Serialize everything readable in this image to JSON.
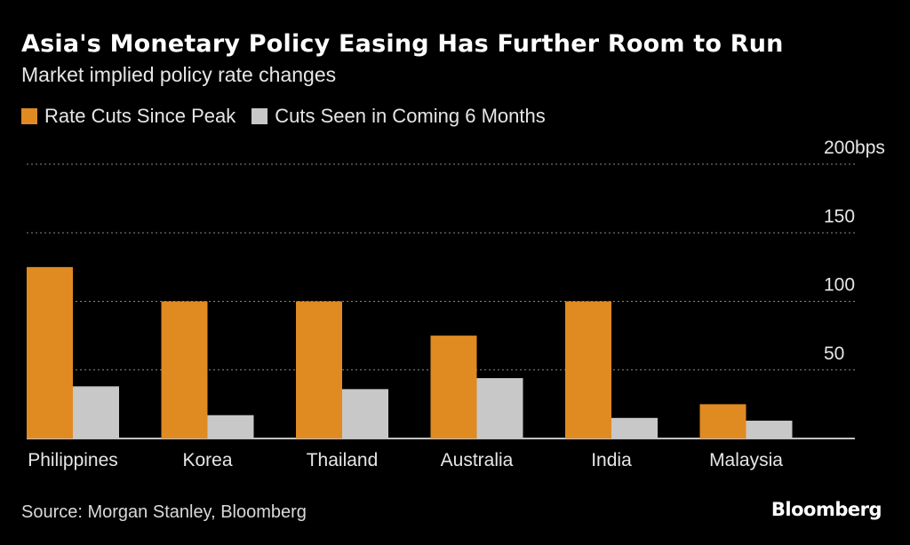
{
  "title": "Asia's Monetary Policy Easing Has Further Room to Run",
  "subtitle": "Market implied policy rate changes",
  "source": "Source: Morgan Stanley, Bloomberg",
  "brand": "Bloomberg",
  "colors": {
    "series1": "#e08a22",
    "series2": "#c8c8c8",
    "grid": "#888888",
    "text": "#e6e6e6"
  },
  "chart_data": {
    "type": "bar",
    "categories": [
      "Philippines",
      "Korea",
      "Thailand",
      "Australia",
      "India",
      "Malaysia"
    ],
    "series": [
      {
        "name": "Rate Cuts Since Peak",
        "values": [
          125,
          100,
          100,
          75,
          100,
          25
        ]
      },
      {
        "name": "Cuts Seen in Coming 6 Months",
        "values": [
          38,
          17,
          36,
          44,
          15,
          13
        ]
      }
    ],
    "ylim": [
      0,
      200
    ],
    "yticks": [
      50,
      100,
      150,
      200
    ],
    "ytick_labels": [
      "50",
      "100",
      "150",
      "200bps"
    ],
    "grid": true,
    "legend": "top-left"
  }
}
